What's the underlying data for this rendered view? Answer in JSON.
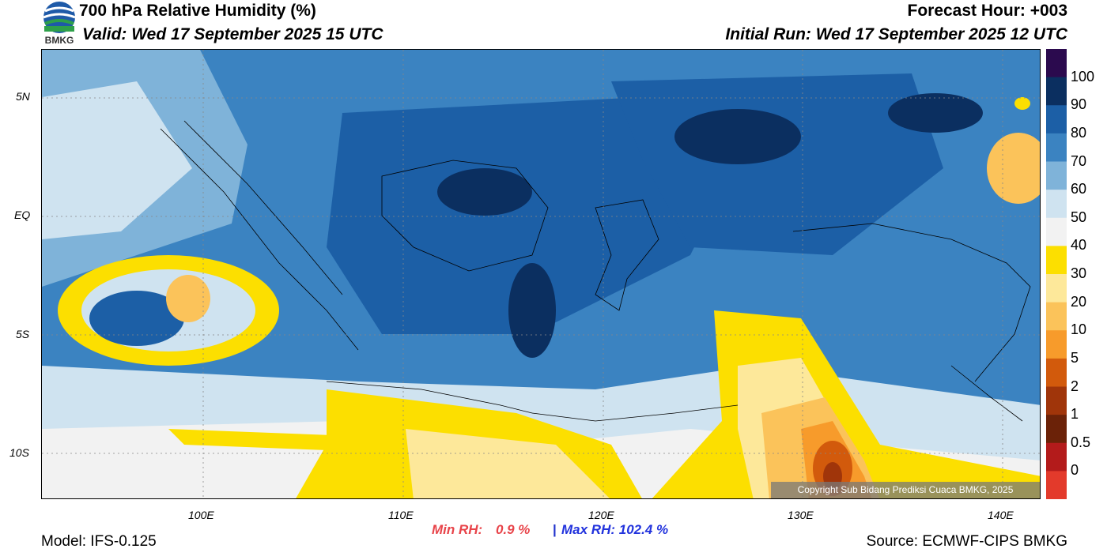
{
  "header": {
    "title": "700 hPa Relative Humidity (%)",
    "valid": "Valid: Wed 17 September 2025 15 UTC",
    "forecast_hour": "Forecast Hour: +003",
    "initial_run": "Initial Run: Wed 17 September 2025 12 UTC",
    "logo_text": "BMKG"
  },
  "axes": {
    "lat_labels": [
      "5N",
      "EQ",
      "5S",
      "10S"
    ],
    "lon_labels": [
      "100E",
      "110E",
      "120E",
      "130E",
      "140E"
    ]
  },
  "colorbar": {
    "labels": [
      "100",
      "90",
      "80",
      "70",
      "60",
      "50",
      "40",
      "30",
      "20",
      "10",
      "5",
      "2",
      "1",
      "0.5",
      "0"
    ],
    "colors": [
      "#2b0a4e",
      "#0b2f60",
      "#1c5fa6",
      "#3b83c1",
      "#7fb3d9",
      "#cfe3f0",
      "#f2f2f2",
      "#fcdf00",
      "#fde89a",
      "#fbc35a",
      "#f79b2b",
      "#d25a0c",
      "#a0350a",
      "#6b2208",
      "#b31b1b",
      "#e33a2b"
    ]
  },
  "stats": {
    "min_label": "Min RH:",
    "min_value": "0.9 %",
    "separator": "|",
    "max_label": "Max RH:",
    "max_value": "102.4 %"
  },
  "footer": {
    "model": "Model: IFS-0.125",
    "source": "Source: ECMWF-CIPS BMKG",
    "copyright": "Copyright Sub Bidang Prediksi Cuaca BMKG, 2025"
  }
}
